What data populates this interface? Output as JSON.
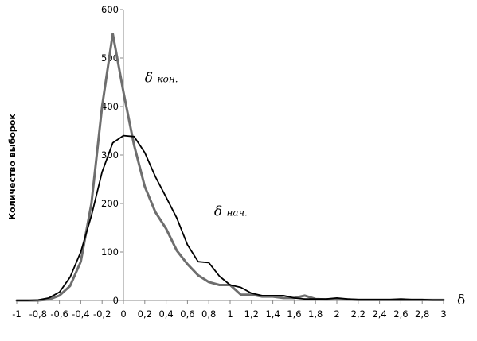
{
  "chart_data": {
    "type": "line",
    "title": "",
    "ylabel": "Количество выборок",
    "xlabel": "δ",
    "xlim": [
      -1,
      3
    ],
    "ylim": [
      0,
      600
    ],
    "x_ticks": [
      "-1",
      "-0,8",
      "-0,6",
      "-0,4",
      "-0,2",
      "0",
      "0,2",
      "0,4",
      "0,6",
      "0,8",
      "1",
      "1,2",
      "1,4",
      "1,6",
      "1,8",
      "2",
      "2,2",
      "2,4",
      "2,6",
      "2,8",
      "3"
    ],
    "y_ticks": [
      "0",
      "100",
      "200",
      "300",
      "400",
      "500",
      "600"
    ],
    "grid": false,
    "series": [
      {
        "name": "δ кон.",
        "color": "#6e6e6e",
        "x": [
          -1,
          -0.9,
          -0.8,
          -0.7,
          -0.6,
          -0.5,
          -0.4,
          -0.3,
          -0.2,
          -0.1,
          0,
          0.1,
          0.2,
          0.3,
          0.4,
          0.5,
          0.6,
          0.7,
          0.8,
          0.9,
          1,
          1.1,
          1.2,
          1.3,
          1.4,
          1.5,
          1.6,
          1.7,
          1.8,
          1.9,
          2,
          2.1,
          2.2,
          2.3,
          2.4,
          2.5,
          2.6,
          2.7,
          2.8,
          2.9,
          3
        ],
        "values": [
          0,
          0,
          0,
          2,
          10,
          30,
          80,
          200,
          400,
          550,
          430,
          320,
          235,
          182,
          148,
          103,
          75,
          52,
          38,
          32,
          32,
          12,
          12,
          8,
          8,
          5,
          5,
          10,
          3,
          2,
          3,
          2,
          1,
          1,
          1,
          1,
          1,
          1,
          1,
          1,
          1
        ]
      },
      {
        "name": "δ нач.",
        "color": "#000000",
        "x": [
          -1,
          -0.9,
          -0.8,
          -0.7,
          -0.6,
          -0.5,
          -0.4,
          -0.3,
          -0.2,
          -0.1,
          0,
          0.1,
          0.2,
          0.3,
          0.4,
          0.5,
          0.6,
          0.7,
          0.8,
          0.9,
          1,
          1.1,
          1.2,
          1.3,
          1.4,
          1.5,
          1.6,
          1.7,
          1.8,
          1.9,
          2,
          2.1,
          2.2,
          2.3,
          2.4,
          2.5,
          2.6,
          2.7,
          2.8,
          2.9,
          3
        ],
        "values": [
          0,
          0,
          1,
          5,
          17,
          48,
          100,
          175,
          265,
          325,
          340,
          338,
          305,
          255,
          213,
          170,
          115,
          80,
          78,
          50,
          32,
          27,
          15,
          10,
          10,
          10,
          5,
          3,
          3,
          3,
          5,
          3,
          2,
          2,
          2,
          2,
          3,
          2,
          2,
          1,
          1
        ]
      }
    ],
    "annotations": [
      {
        "text_main": "δ",
        "text_sub": "кон.",
        "x": 0.2,
        "y": 450
      },
      {
        "text_main": "δ",
        "text_sub": "нач.",
        "x": 0.85,
        "y": 175
      }
    ]
  }
}
